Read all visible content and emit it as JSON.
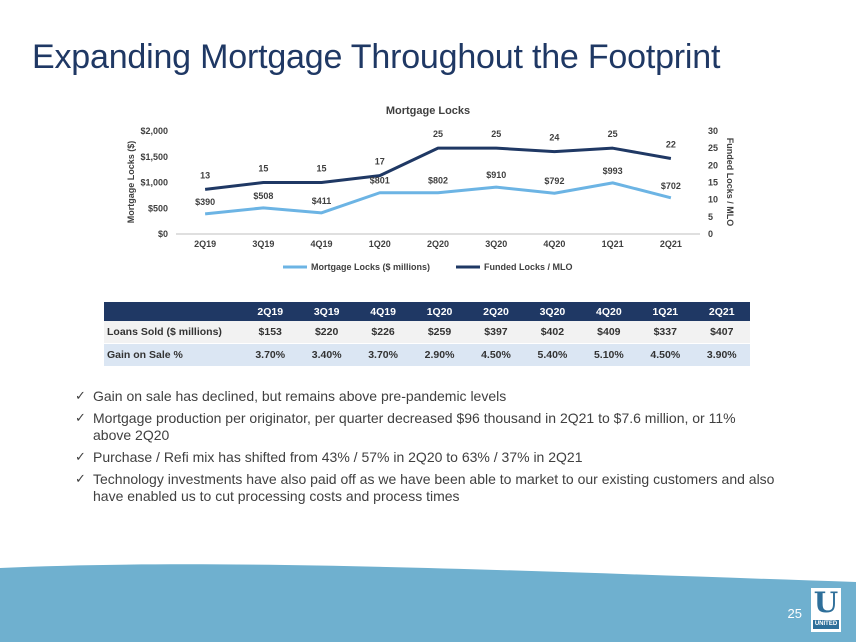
{
  "slide": {
    "title": "Expanding Mortgage Throughout the Footprint",
    "page_number": "25",
    "logo_text": "UNITED",
    "logo_letter": "U"
  },
  "chart_data": {
    "type": "line",
    "title": "Mortgage Locks",
    "categories": [
      "2Q19",
      "3Q19",
      "4Q19",
      "1Q20",
      "2Q20",
      "3Q20",
      "4Q20",
      "1Q21",
      "2Q21"
    ],
    "series": [
      {
        "name": "Mortgage Locks ($ millions)",
        "axis": "left",
        "color": "#6cb4e4",
        "values": [
          390,
          508,
          411,
          801,
          802,
          910,
          792,
          993,
          702
        ],
        "labels": [
          "$390",
          "$508",
          "$411",
          "$801",
          "$802",
          "$910",
          "$792",
          "$993",
          "$702"
        ]
      },
      {
        "name": "Funded Locks / MLO",
        "axis": "right",
        "color": "#1f3864",
        "values": [
          13,
          15,
          15,
          17,
          25,
          25,
          24,
          25,
          22
        ],
        "labels": [
          "13",
          "15",
          "15",
          "17",
          "25",
          "25",
          "24",
          "25",
          "22"
        ]
      }
    ],
    "y_left": {
      "label": "Mortgage Locks ($)",
      "range": [
        0,
        2000
      ],
      "ticks": [
        "$0",
        "$500",
        "$1,000",
        "$1,500",
        "$2,000"
      ]
    },
    "y_right": {
      "label": "Funded Locks / MLO",
      "range": [
        0,
        30
      ],
      "ticks": [
        "0",
        "5",
        "10",
        "15",
        "20",
        "25",
        "30"
      ]
    },
    "grid": false,
    "legend_position": "bottom"
  },
  "table": {
    "headers": [
      "",
      "2Q19",
      "3Q19",
      "4Q19",
      "1Q20",
      "2Q20",
      "3Q20",
      "4Q20",
      "1Q21",
      "2Q21"
    ],
    "rows": [
      {
        "label": "Loans Sold ($ millions)",
        "cells": [
          "$153",
          "$220",
          "$226",
          "$259",
          "$397",
          "$402",
          "$409",
          "$337",
          "$407"
        ]
      },
      {
        "label": "Gain on Sale %",
        "cells": [
          "3.70%",
          "3.40%",
          "3.70%",
          "2.90%",
          "4.50%",
          "5.40%",
          "5.10%",
          "4.50%",
          "3.90%"
        ]
      }
    ]
  },
  "bullets": [
    "Gain on sale has declined, but remains above pre-pandemic levels",
    "Mortgage production per originator, per quarter decreased $96 thousand in 2Q21 to $7.6 million, or 11% above 2Q20",
    "Purchase / Refi mix has shifted from 43% / 57% in 2Q20 to 63% / 37% in 2Q21",
    "Technology investments have also paid off as we have been able to market to our existing customers and also have enabled us to cut processing costs and process times"
  ],
  "bullet_glyph": "✓",
  "colors": {
    "title": "#1f3864",
    "table_header": "#1f3864",
    "row_alt": "#dbe6f3",
    "wave": "#6fb0cf"
  }
}
